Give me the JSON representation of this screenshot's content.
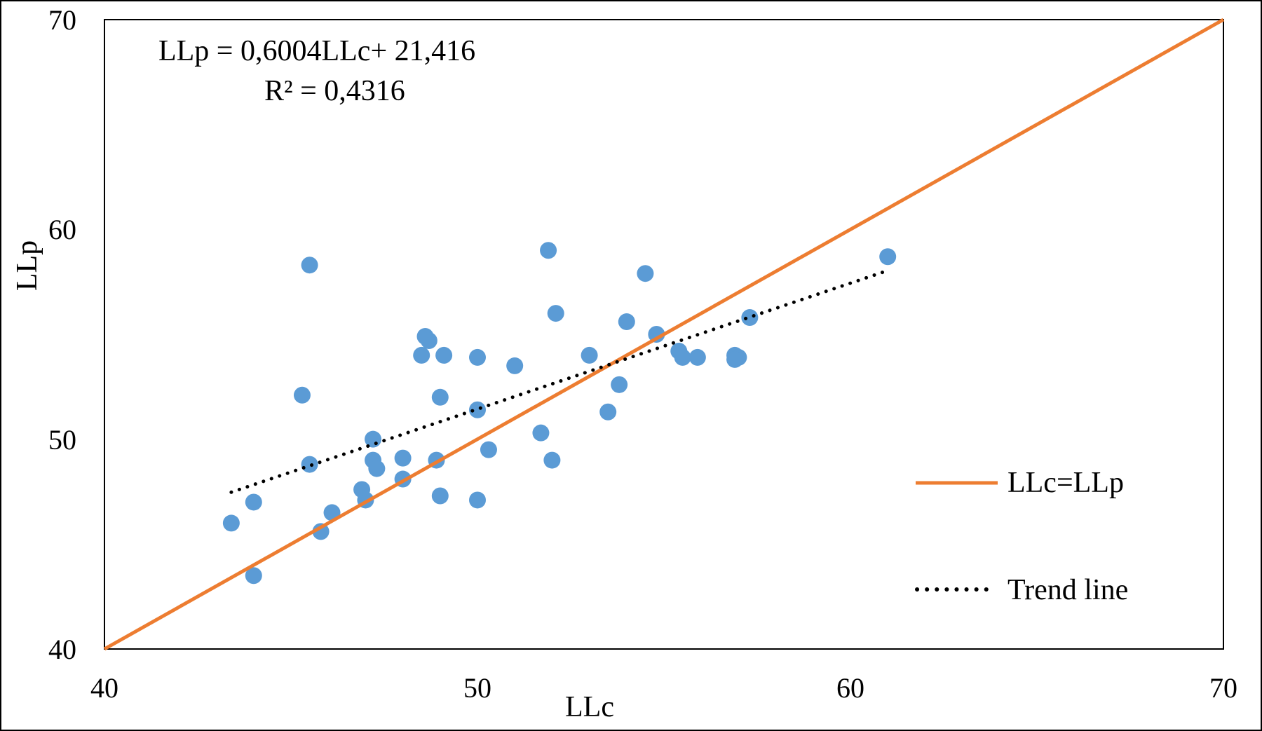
{
  "chart_data": {
    "type": "scatter",
    "xlabel": "LLc",
    "ylabel": "LLp",
    "xlim": [
      40,
      70
    ],
    "ylim": [
      40,
      70
    ],
    "xticks": [
      "40",
      "50",
      "60",
      "70"
    ],
    "yticks": [
      "40",
      "50",
      "60",
      "70"
    ],
    "grid": false,
    "legend_position": "right",
    "annotations": {
      "equation": "LLp = 0,6004LLc+ 21,416",
      "r2": "R² = 0,4316"
    },
    "series": [
      {
        "type": "scatter",
        "color": "#5B9BD5",
        "points": [
          [
            43.4,
            46.0
          ],
          [
            44.0,
            47.0
          ],
          [
            44.0,
            43.5
          ],
          [
            45.5,
            58.3
          ],
          [
            45.3,
            52.1
          ],
          [
            45.5,
            48.8
          ],
          [
            45.8,
            45.6
          ],
          [
            46.1,
            46.5
          ],
          [
            46.9,
            47.6
          ],
          [
            47.0,
            47.1
          ],
          [
            47.2,
            50.0
          ],
          [
            47.2,
            49.0
          ],
          [
            47.3,
            48.6
          ],
          [
            48.0,
            49.1
          ],
          [
            48.0,
            48.1
          ],
          [
            48.5,
            54.0
          ],
          [
            48.6,
            54.9
          ],
          [
            48.7,
            54.7
          ],
          [
            49.1,
            54.0
          ],
          [
            48.9,
            49.0
          ],
          [
            49.0,
            52.0
          ],
          [
            49.0,
            47.3
          ],
          [
            50.0,
            53.9
          ],
          [
            50.0,
            51.4
          ],
          [
            50.0,
            47.1
          ],
          [
            50.3,
            49.5
          ],
          [
            51.0,
            53.5
          ],
          [
            51.7,
            50.3
          ],
          [
            51.9,
            59.0
          ],
          [
            52.0,
            49.0
          ],
          [
            52.1,
            56.0
          ],
          [
            53.0,
            54.0
          ],
          [
            53.5,
            51.3
          ],
          [
            53.8,
            52.6
          ],
          [
            54.0,
            55.6
          ],
          [
            54.5,
            57.9
          ],
          [
            54.8,
            55.0
          ],
          [
            55.4,
            54.2
          ],
          [
            55.5,
            53.9
          ],
          [
            55.9,
            53.9
          ],
          [
            56.9,
            54.0
          ],
          [
            57.0,
            53.9
          ],
          [
            56.9,
            53.8
          ],
          [
            57.3,
            55.8
          ],
          [
            61.0,
            58.7
          ]
        ]
      },
      {
        "name": "LLc=LLp",
        "type": "line",
        "color": "#ED7D31",
        "x": [
          40,
          70
        ],
        "y": [
          40,
          70
        ]
      },
      {
        "name": "Trend line",
        "type": "line",
        "style": "dotted",
        "color": "#000000",
        "slope": 0.6004,
        "intercept": 21.416,
        "x": [
          43.4,
          61.0
        ]
      }
    ]
  }
}
